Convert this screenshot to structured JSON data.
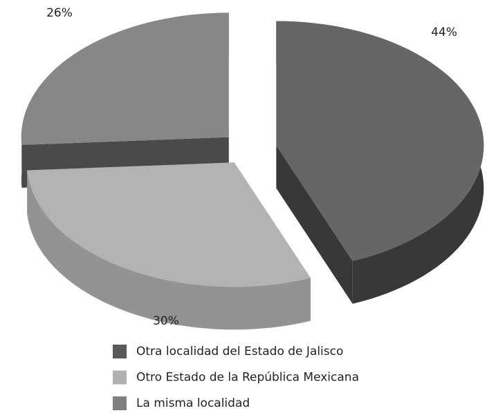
{
  "chart_data": {
    "type": "pie",
    "categories": [
      "Otra localidad del Estado de Jalisco",
      "Otro Estado de la República Mexicana",
      "La misma localidad"
    ],
    "values": [
      44,
      30,
      26
    ],
    "value_labels": [
      "44%",
      "30%",
      "26%"
    ],
    "colors": [
      "#666666",
      "#b3b3b3",
      "#878787"
    ],
    "legend_colors": [
      "#5a5a5a",
      "#b0b0b0",
      "#808080"
    ],
    "three_d": true,
    "exploded": true
  }
}
